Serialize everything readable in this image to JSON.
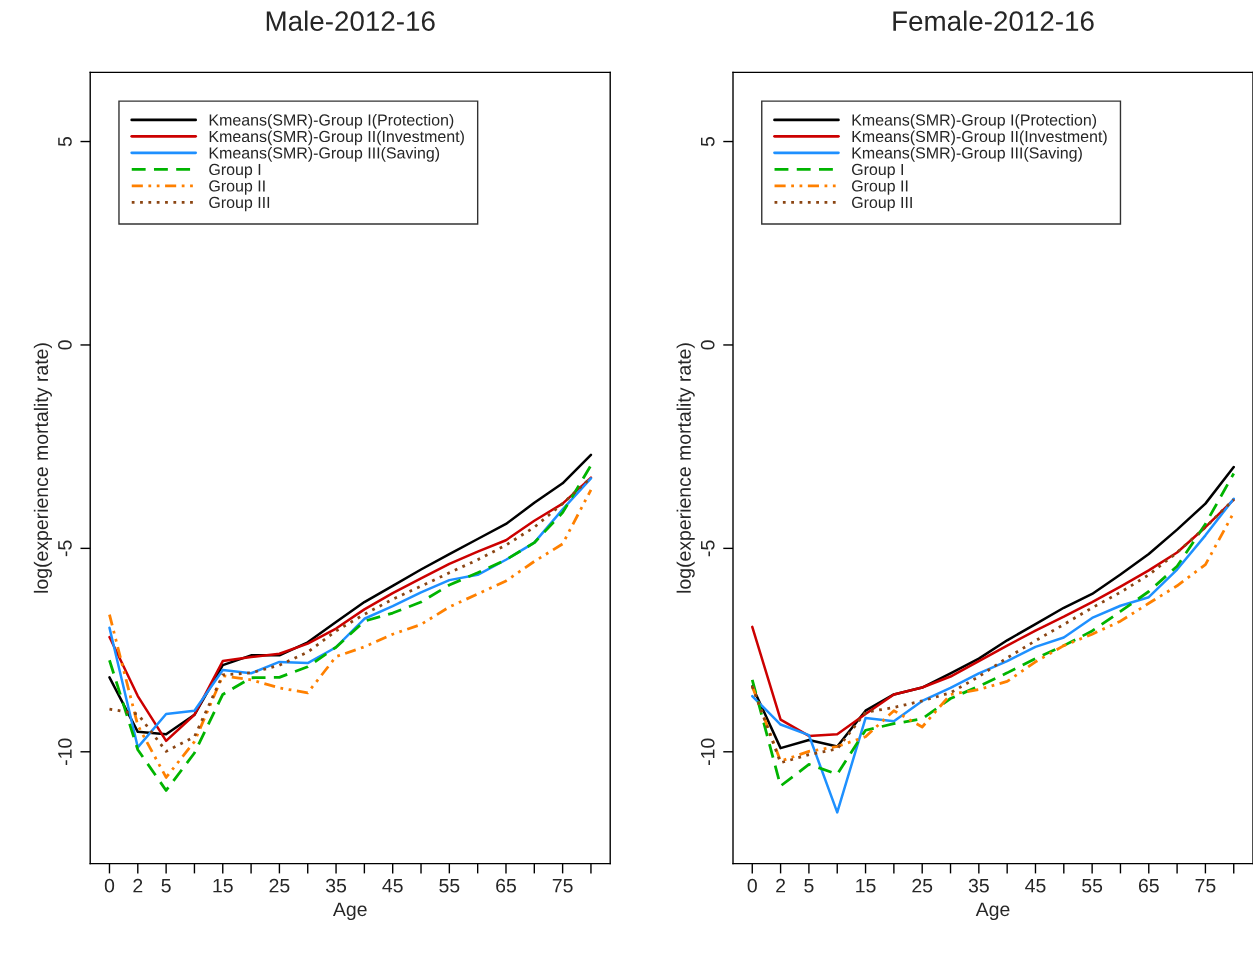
{
  "chart_data": [
    {
      "type": "line",
      "title": "Male-2012-16",
      "xlabel": "Age",
      "ylabel": "log(experience mortality rate)",
      "categories": [
        "0",
        "2",
        "5",
        null,
        "15",
        null,
        "25",
        null,
        "35",
        null,
        "45",
        null,
        "55",
        null,
        "65",
        null,
        "75",
        null
      ],
      "ylim": [
        -12.75,
        6.7
      ],
      "yticks": [
        -10,
        -5,
        0,
        5
      ],
      "grid": false,
      "legend": "top left",
      "marker": "none",
      "series": [
        {
          "name": "Kmeans(SMR)-Group I(Protection)",
          "color": "#000000",
          "line_style": "solid",
          "values": [
            -8.17,
            -9.51,
            -9.57,
            -9.09,
            -7.87,
            -7.63,
            -7.63,
            -7.31,
            -6.81,
            -6.32,
            -5.92,
            -5.52,
            -5.14,
            -4.77,
            -4.4,
            -3.88,
            -3.4,
            -2.7
          ]
        },
        {
          "name": "Kmeans(SMR)-Group II(Investment)",
          "color": "#cc0000",
          "line_style": "solid",
          "values": [
            -7.18,
            -8.63,
            -9.73,
            -9.09,
            -7.77,
            -7.67,
            -7.59,
            -7.34,
            -6.97,
            -6.5,
            -6.1,
            -5.74,
            -5.38,
            -5.08,
            -4.8,
            -4.32,
            -3.9,
            -3.26
          ]
        },
        {
          "name": "Kmeans(SMR)-Group III(Saving)",
          "color": "#1e90ff",
          "line_style": "solid",
          "values": [
            -6.95,
            -9.89,
            -9.07,
            -8.99,
            -7.99,
            -8.07,
            -7.79,
            -7.82,
            -7.43,
            -6.73,
            -6.42,
            -6.08,
            -5.78,
            -5.65,
            -5.28,
            -4.86,
            -4.04,
            -3.28
          ]
        },
        {
          "name": "Group I",
          "color": "#00b400",
          "line_style": "dashed",
          "values": [
            -7.75,
            -9.95,
            -10.95,
            -10.03,
            -8.59,
            -8.18,
            -8.17,
            -7.91,
            -7.43,
            -6.79,
            -6.59,
            -6.32,
            -5.9,
            -5.6,
            -5.28,
            -4.86,
            -4.12,
            -2.96
          ]
        },
        {
          "name": "Group II",
          "color": "#ff8000",
          "line_style": "dashdot",
          "values": [
            -6.63,
            -9.35,
            -10.63,
            -9.75,
            -8.13,
            -8.23,
            -8.43,
            -8.55,
            -7.66,
            -7.42,
            -7.11,
            -6.87,
            -6.44,
            -6.12,
            -5.8,
            -5.32,
            -4.89,
            -3.56
          ]
        },
        {
          "name": "Group III",
          "color": "#8b4513",
          "line_style": "dotted",
          "values": [
            -8.95,
            -9.07,
            -9.99,
            -9.63,
            -8.11,
            -8.06,
            -7.87,
            -7.55,
            -7.03,
            -6.62,
            -6.25,
            -5.93,
            -5.6,
            -5.28,
            -4.92,
            -4.48,
            -3.9,
            -3.26
          ]
        }
      ]
    },
    {
      "type": "line",
      "title": "Female-2012-16",
      "xlabel": "Age",
      "ylabel": "log(experience mortality rate)",
      "categories": [
        "0",
        "2",
        "5",
        null,
        "15",
        null,
        "25",
        null,
        "35",
        null,
        "45",
        null,
        "55",
        null,
        "65",
        null,
        "75",
        null
      ],
      "ylim": [
        -12.75,
        6.7
      ],
      "yticks": [
        -10,
        -5,
        0,
        5
      ],
      "grid": false,
      "legend": "top left",
      "marker": "none",
      "series": [
        {
          "name": "Kmeans(SMR)-Group I(Protection)",
          "color": "#000000",
          "line_style": "solid",
          "values": [
            -8.39,
            -9.91,
            -9.71,
            -9.87,
            -8.99,
            -8.59,
            -8.42,
            -8.07,
            -7.71,
            -7.26,
            -6.86,
            -6.46,
            -6.12,
            -5.64,
            -5.14,
            -4.54,
            -3.9,
            -3.0
          ]
        },
        {
          "name": "Kmeans(SMR)-Group II(Investment)",
          "color": "#cc0000",
          "line_style": "solid",
          "values": [
            -6.93,
            -9.21,
            -9.61,
            -9.57,
            -9.07,
            -8.59,
            -8.42,
            -8.15,
            -7.77,
            -7.39,
            -7.02,
            -6.68,
            -6.32,
            -5.94,
            -5.54,
            -5.1,
            -4.48,
            -3.8
          ]
        },
        {
          "name": "Kmeans(SMR)-Group III(Saving)",
          "color": "#1e90ff",
          "line_style": "solid",
          "values": [
            -8.63,
            -9.33,
            -9.59,
            -11.49,
            -9.17,
            -9.25,
            -8.75,
            -8.43,
            -8.07,
            -7.77,
            -7.42,
            -7.19,
            -6.71,
            -6.41,
            -6.2,
            -5.52,
            -4.68,
            -3.78
          ]
        },
        {
          "name": "Group I",
          "color": "#00b400",
          "line_style": "dashed",
          "values": [
            -8.23,
            -10.84,
            -10.31,
            -10.55,
            -9.47,
            -9.31,
            -9.19,
            -8.69,
            -8.39,
            -8.06,
            -7.71,
            -7.39,
            -7.03,
            -6.55,
            -6.06,
            -5.44,
            -4.4,
            -3.16
          ]
        },
        {
          "name": "Group II",
          "color": "#ff8000",
          "line_style": "dashdot",
          "values": [
            -8.39,
            -10.23,
            -9.99,
            -9.87,
            -9.63,
            -8.99,
            -9.39,
            -8.59,
            -8.47,
            -8.27,
            -7.79,
            -7.39,
            -7.11,
            -6.79,
            -6.35,
            -5.92,
            -5.4,
            -4.12
          ]
        },
        {
          "name": "Group III",
          "color": "#8b4513",
          "line_style": "dotted",
          "values": [
            -8.39,
            -10.27,
            -10.07,
            -9.93,
            -9.03,
            -8.91,
            -8.75,
            -8.55,
            -8.15,
            -7.69,
            -7.27,
            -6.87,
            -6.46,
            -6.08,
            -5.65,
            -5.1,
            -4.48,
            -3.8
          ]
        }
      ]
    }
  ]
}
